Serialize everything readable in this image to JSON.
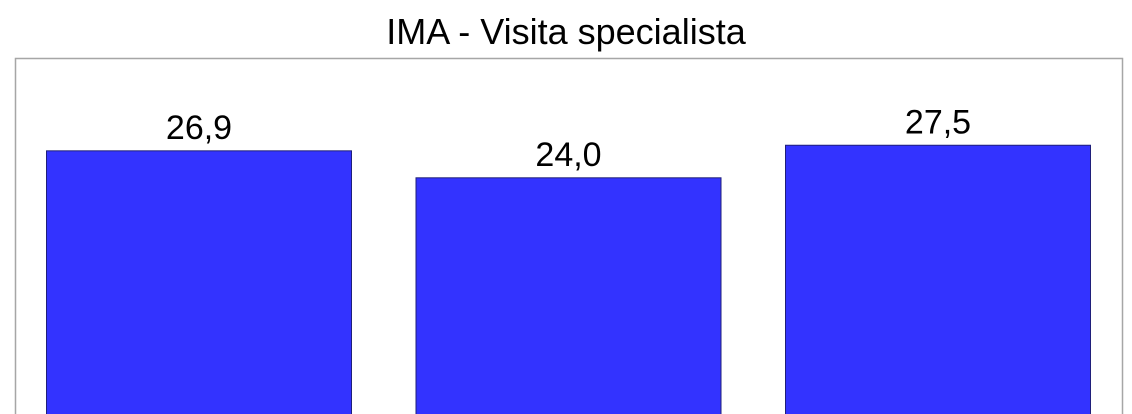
{
  "chart_data": {
    "type": "bar",
    "title": "IMA - Visita specialista",
    "values": [
      26.9,
      24.0,
      27.5
    ],
    "value_labels": [
      "26,9",
      "24,0",
      "27,5"
    ],
    "color": "#3333ff",
    "edge_color": "#1f1f7a"
  }
}
